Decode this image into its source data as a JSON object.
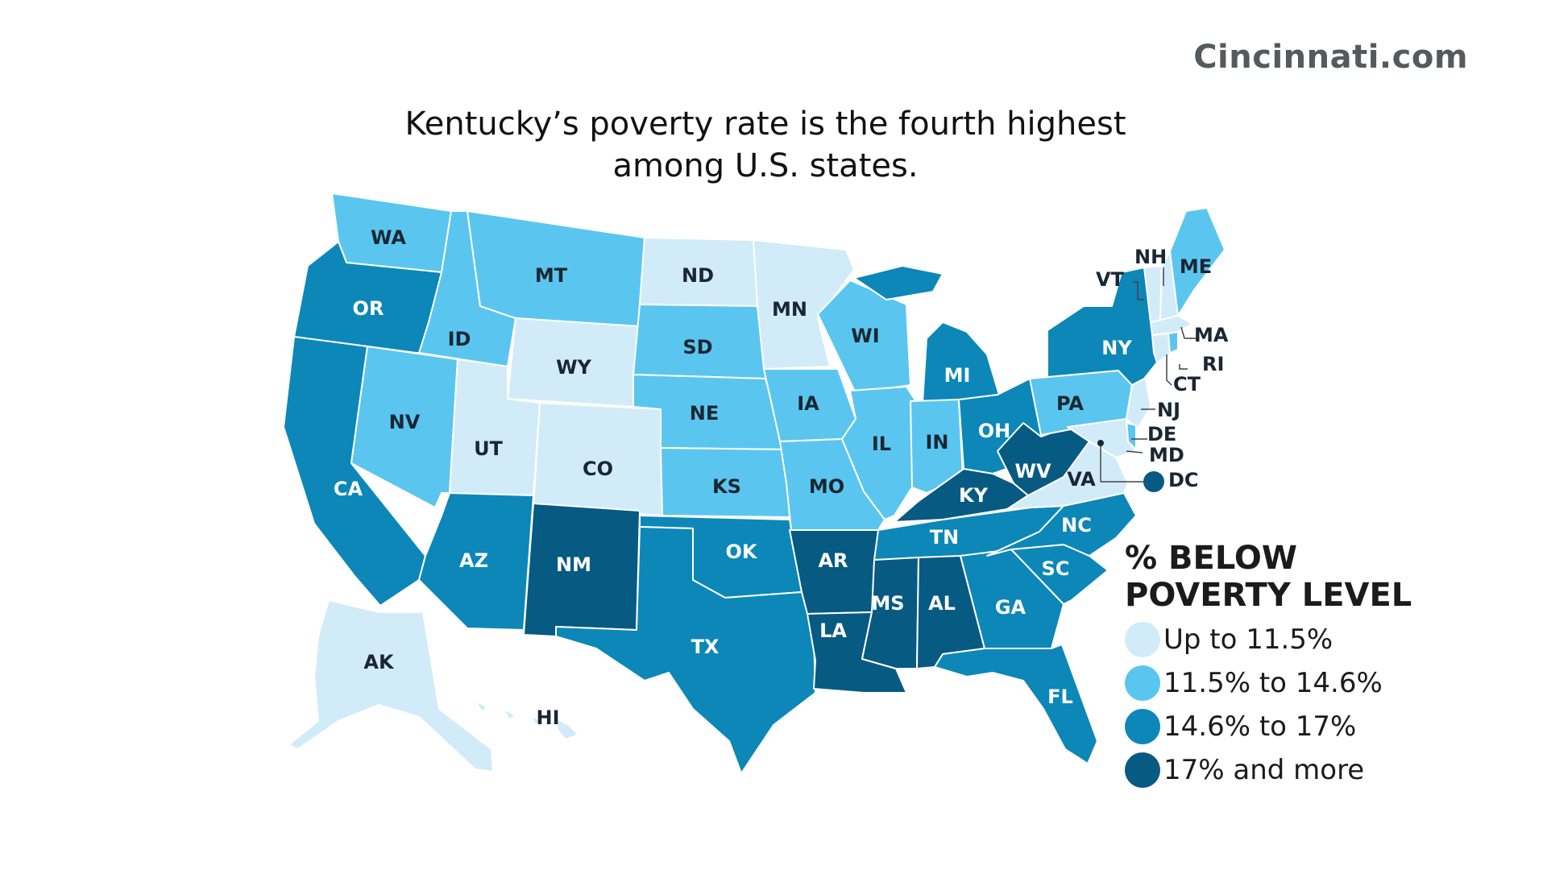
{
  "branding": {
    "logo_text": "Cincinnati.com"
  },
  "header": {
    "title_line1": "Kentucky’s poverty rate is the fourth highest",
    "title_line2": "among U.S. states."
  },
  "colors": {
    "tier1": "#d2ebf9",
    "tier2": "#5ac6ef",
    "tier3": "#0c87b8",
    "tier4": "#075a82",
    "label_dark": "#1a2633",
    "label_light": "#ffffff"
  },
  "legend": {
    "title_line1": "% BELOW",
    "title_line2": "POVERTY LEVEL",
    "items": [
      {
        "label": "Up to 11.5%",
        "tier": 1
      },
      {
        "label": "11.5% to 14.6%",
        "tier": 2
      },
      {
        "label": "14.6% to 17%",
        "tier": 3
      },
      {
        "label": "17% and more",
        "tier": 4
      }
    ]
  },
  "states": [
    {
      "abbr": "WA",
      "tier": 2
    },
    {
      "abbr": "OR",
      "tier": 3
    },
    {
      "abbr": "CA",
      "tier": 3
    },
    {
      "abbr": "ID",
      "tier": 2
    },
    {
      "abbr": "NV",
      "tier": 2
    },
    {
      "abbr": "MT",
      "tier": 2
    },
    {
      "abbr": "WY",
      "tier": 1
    },
    {
      "abbr": "UT",
      "tier": 1
    },
    {
      "abbr": "AZ",
      "tier": 3
    },
    {
      "abbr": "CO",
      "tier": 1
    },
    {
      "abbr": "NM",
      "tier": 4
    },
    {
      "abbr": "ND",
      "tier": 1
    },
    {
      "abbr": "SD",
      "tier": 2
    },
    {
      "abbr": "NE",
      "tier": 2
    },
    {
      "abbr": "KS",
      "tier": 2
    },
    {
      "abbr": "OK",
      "tier": 3
    },
    {
      "abbr": "TX",
      "tier": 3
    },
    {
      "abbr": "MN",
      "tier": 1
    },
    {
      "abbr": "IA",
      "tier": 2
    },
    {
      "abbr": "MO",
      "tier": 2
    },
    {
      "abbr": "AR",
      "tier": 4
    },
    {
      "abbr": "LA",
      "tier": 4
    },
    {
      "abbr": "WI",
      "tier": 2
    },
    {
      "abbr": "IL",
      "tier": 2
    },
    {
      "abbr": "MI",
      "tier": 3
    },
    {
      "abbr": "IN",
      "tier": 2
    },
    {
      "abbr": "OH",
      "tier": 3
    },
    {
      "abbr": "KY",
      "tier": 4
    },
    {
      "abbr": "TN",
      "tier": 3
    },
    {
      "abbr": "MS",
      "tier": 4
    },
    {
      "abbr": "AL",
      "tier": 4
    },
    {
      "abbr": "GA",
      "tier": 3
    },
    {
      "abbr": "FL",
      "tier": 3
    },
    {
      "abbr": "SC",
      "tier": 3
    },
    {
      "abbr": "NC",
      "tier": 3
    },
    {
      "abbr": "VA",
      "tier": 1
    },
    {
      "abbr": "WV",
      "tier": 4
    },
    {
      "abbr": "PA",
      "tier": 2
    },
    {
      "abbr": "NY",
      "tier": 3
    },
    {
      "abbr": "VT",
      "tier": 1
    },
    {
      "abbr": "NH",
      "tier": 1
    },
    {
      "abbr": "ME",
      "tier": 2
    },
    {
      "abbr": "MA",
      "tier": 1
    },
    {
      "abbr": "RI",
      "tier": 2
    },
    {
      "abbr": "CT",
      "tier": 1
    },
    {
      "abbr": "NJ",
      "tier": 1
    },
    {
      "abbr": "DE",
      "tier": 2
    },
    {
      "abbr": "MD",
      "tier": 1
    },
    {
      "abbr": "DC",
      "tier": 4
    },
    {
      "abbr": "AK",
      "tier": 1
    },
    {
      "abbr": "HI",
      "tier": 1
    }
  ]
}
